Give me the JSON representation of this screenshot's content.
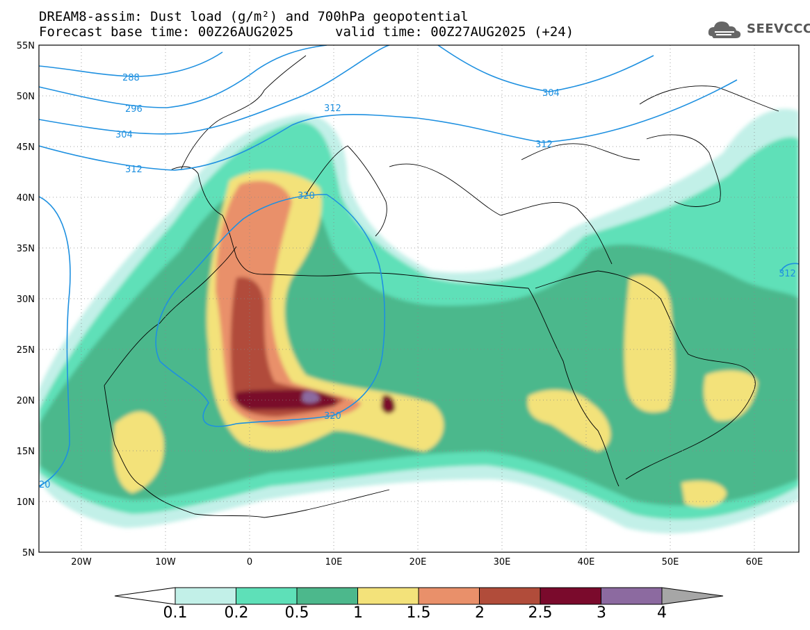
{
  "title_line1": "DREAM8-assim: Dust load (g/m²) and 700hPa geopotential",
  "title_line2_left": "Forecast base time: 00Z26AUG2025",
  "title_line2_right": "valid time: 00Z27AUG2025 (+24)",
  "logo_text": "SEEVCCC",
  "lat_labels": [
    "55N",
    "50N",
    "45N",
    "40N",
    "35N",
    "30N",
    "25N",
    "20N",
    "15N",
    "10N",
    "5N"
  ],
  "lon_labels": [
    "20W",
    "10W",
    "0",
    "10E",
    "20E",
    "30E",
    "40E",
    "50E",
    "60E"
  ],
  "contour_labels": [
    "288",
    "296",
    "304",
    "312",
    "320",
    "320",
    "312",
    "304",
    "312",
    "312",
    "20"
  ],
  "colorbar": {
    "levels": [
      "0.1",
      "0.2",
      "0.5",
      "1",
      "1.5",
      "2",
      "2.5",
      "3",
      "4"
    ],
    "colors": [
      "#c2f0e8",
      "#5ee0b8",
      "#4cb88c",
      "#f3e27a",
      "#e9906a",
      "#b14c3a",
      "#7a0a2c",
      "#8c6aa0",
      "#a6a6a6"
    ]
  },
  "contour_color": "#1e90e0"
}
